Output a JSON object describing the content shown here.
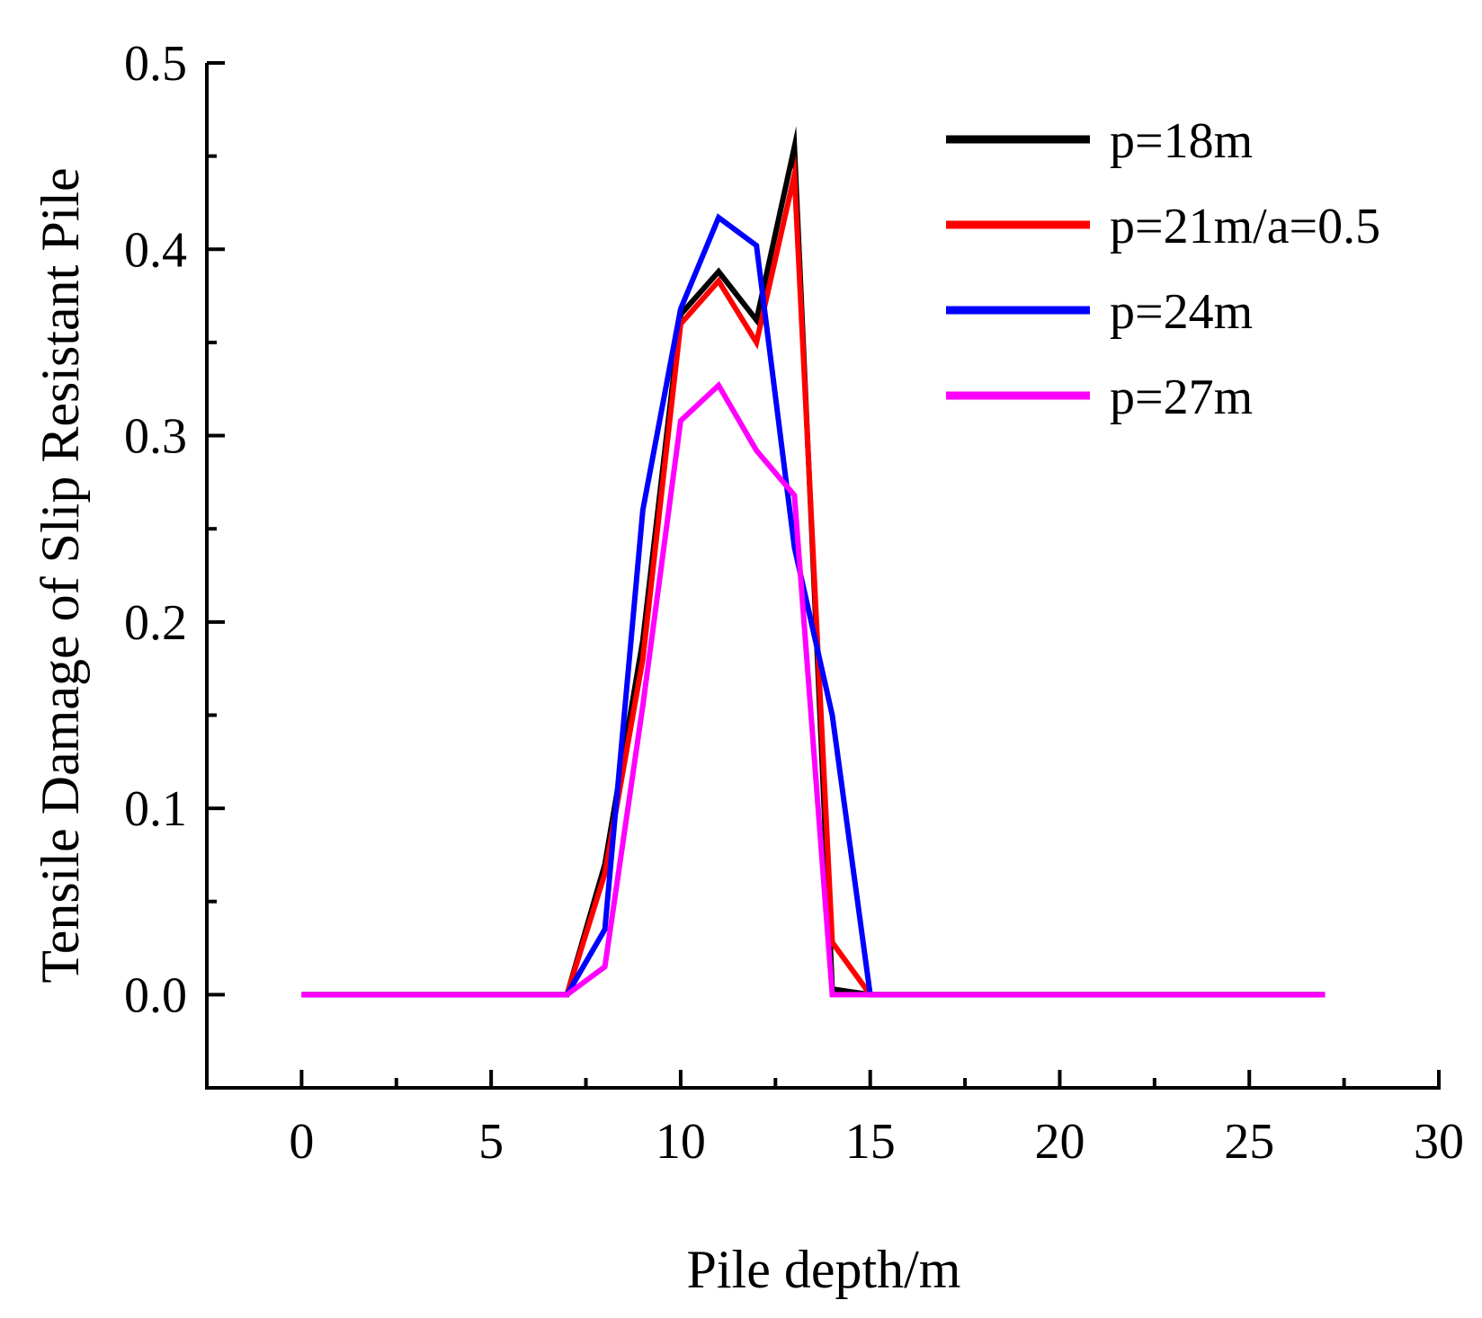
{
  "chart_data": {
    "type": "line",
    "title": "",
    "xlabel": "Pile depth/m",
    "ylabel": "Tensile Damage of Slip Resistant Pile",
    "xlim": [
      -2.5,
      30
    ],
    "ylim": [
      -0.05,
      0.5
    ],
    "xticks": [
      0,
      5,
      10,
      15,
      20,
      25,
      30
    ],
    "xtick_labels": [
      "0",
      "5",
      "10",
      "15",
      "20",
      "25",
      "30"
    ],
    "yticks": [
      0.0,
      0.1,
      0.2,
      0.3,
      0.4,
      0.5
    ],
    "ytick_labels": [
      "0.0",
      "0.1",
      "0.2",
      "0.3",
      "0.4",
      "0.5"
    ],
    "grid": false,
    "legend_position": "top-right",
    "series": [
      {
        "name": "p=18m",
        "color": "#000000",
        "x": [
          0,
          1,
          2,
          3,
          4,
          5,
          6,
          7,
          8,
          9,
          10,
          11,
          12,
          13,
          14,
          15,
          16,
          17,
          18,
          19,
          20,
          21,
          22,
          23,
          24,
          25,
          26,
          27
        ],
        "y": [
          0,
          0,
          0,
          0,
          0,
          0,
          0,
          0,
          0.07,
          0.19,
          0.365,
          0.388,
          0.362,
          0.455,
          0.003,
          0,
          0,
          0,
          0,
          0,
          0,
          0,
          0,
          0,
          0,
          0,
          0,
          0
        ]
      },
      {
        "name": "p=21m/a=0.5",
        "color": "#ff0000",
        "x": [
          0,
          1,
          2,
          3,
          4,
          5,
          6,
          7,
          8,
          9,
          10,
          11,
          12,
          13,
          14,
          15,
          16,
          17,
          18,
          19,
          20,
          21,
          22,
          23,
          24,
          25,
          26,
          27
        ],
        "y": [
          0,
          0,
          0,
          0,
          0,
          0,
          0,
          0,
          0.065,
          0.18,
          0.36,
          0.383,
          0.35,
          0.44,
          0.028,
          0,
          0,
          0,
          0,
          0,
          0,
          0,
          0,
          0,
          0,
          0,
          0,
          0
        ]
      },
      {
        "name": "p=24m",
        "color": "#0000ff",
        "x": [
          0,
          1,
          2,
          3,
          4,
          5,
          6,
          7,
          8,
          9,
          10,
          11,
          12,
          13,
          14,
          15,
          16,
          17,
          18,
          19,
          20,
          21,
          22,
          23,
          24,
          25,
          26,
          27
        ],
        "y": [
          0,
          0,
          0,
          0,
          0,
          0,
          0,
          0,
          0.035,
          0.26,
          0.368,
          0.417,
          0.402,
          0.24,
          0.15,
          0,
          0,
          0,
          0,
          0,
          0,
          0,
          0,
          0,
          0,
          0,
          0,
          0
        ]
      },
      {
        "name": "p=27m",
        "color": "#ff00ff",
        "x": [
          0,
          1,
          2,
          3,
          4,
          5,
          6,
          7,
          8,
          9,
          10,
          11,
          12,
          13,
          14,
          15,
          16,
          17,
          18,
          19,
          20,
          21,
          22,
          23,
          24,
          25,
          26,
          27
        ],
        "y": [
          0,
          0,
          0,
          0,
          0,
          0,
          0,
          0,
          0.015,
          0.155,
          0.308,
          0.327,
          0.292,
          0.268,
          0,
          0,
          0,
          0,
          0,
          0,
          0,
          0,
          0,
          0,
          0,
          0,
          0,
          0
        ]
      }
    ]
  }
}
